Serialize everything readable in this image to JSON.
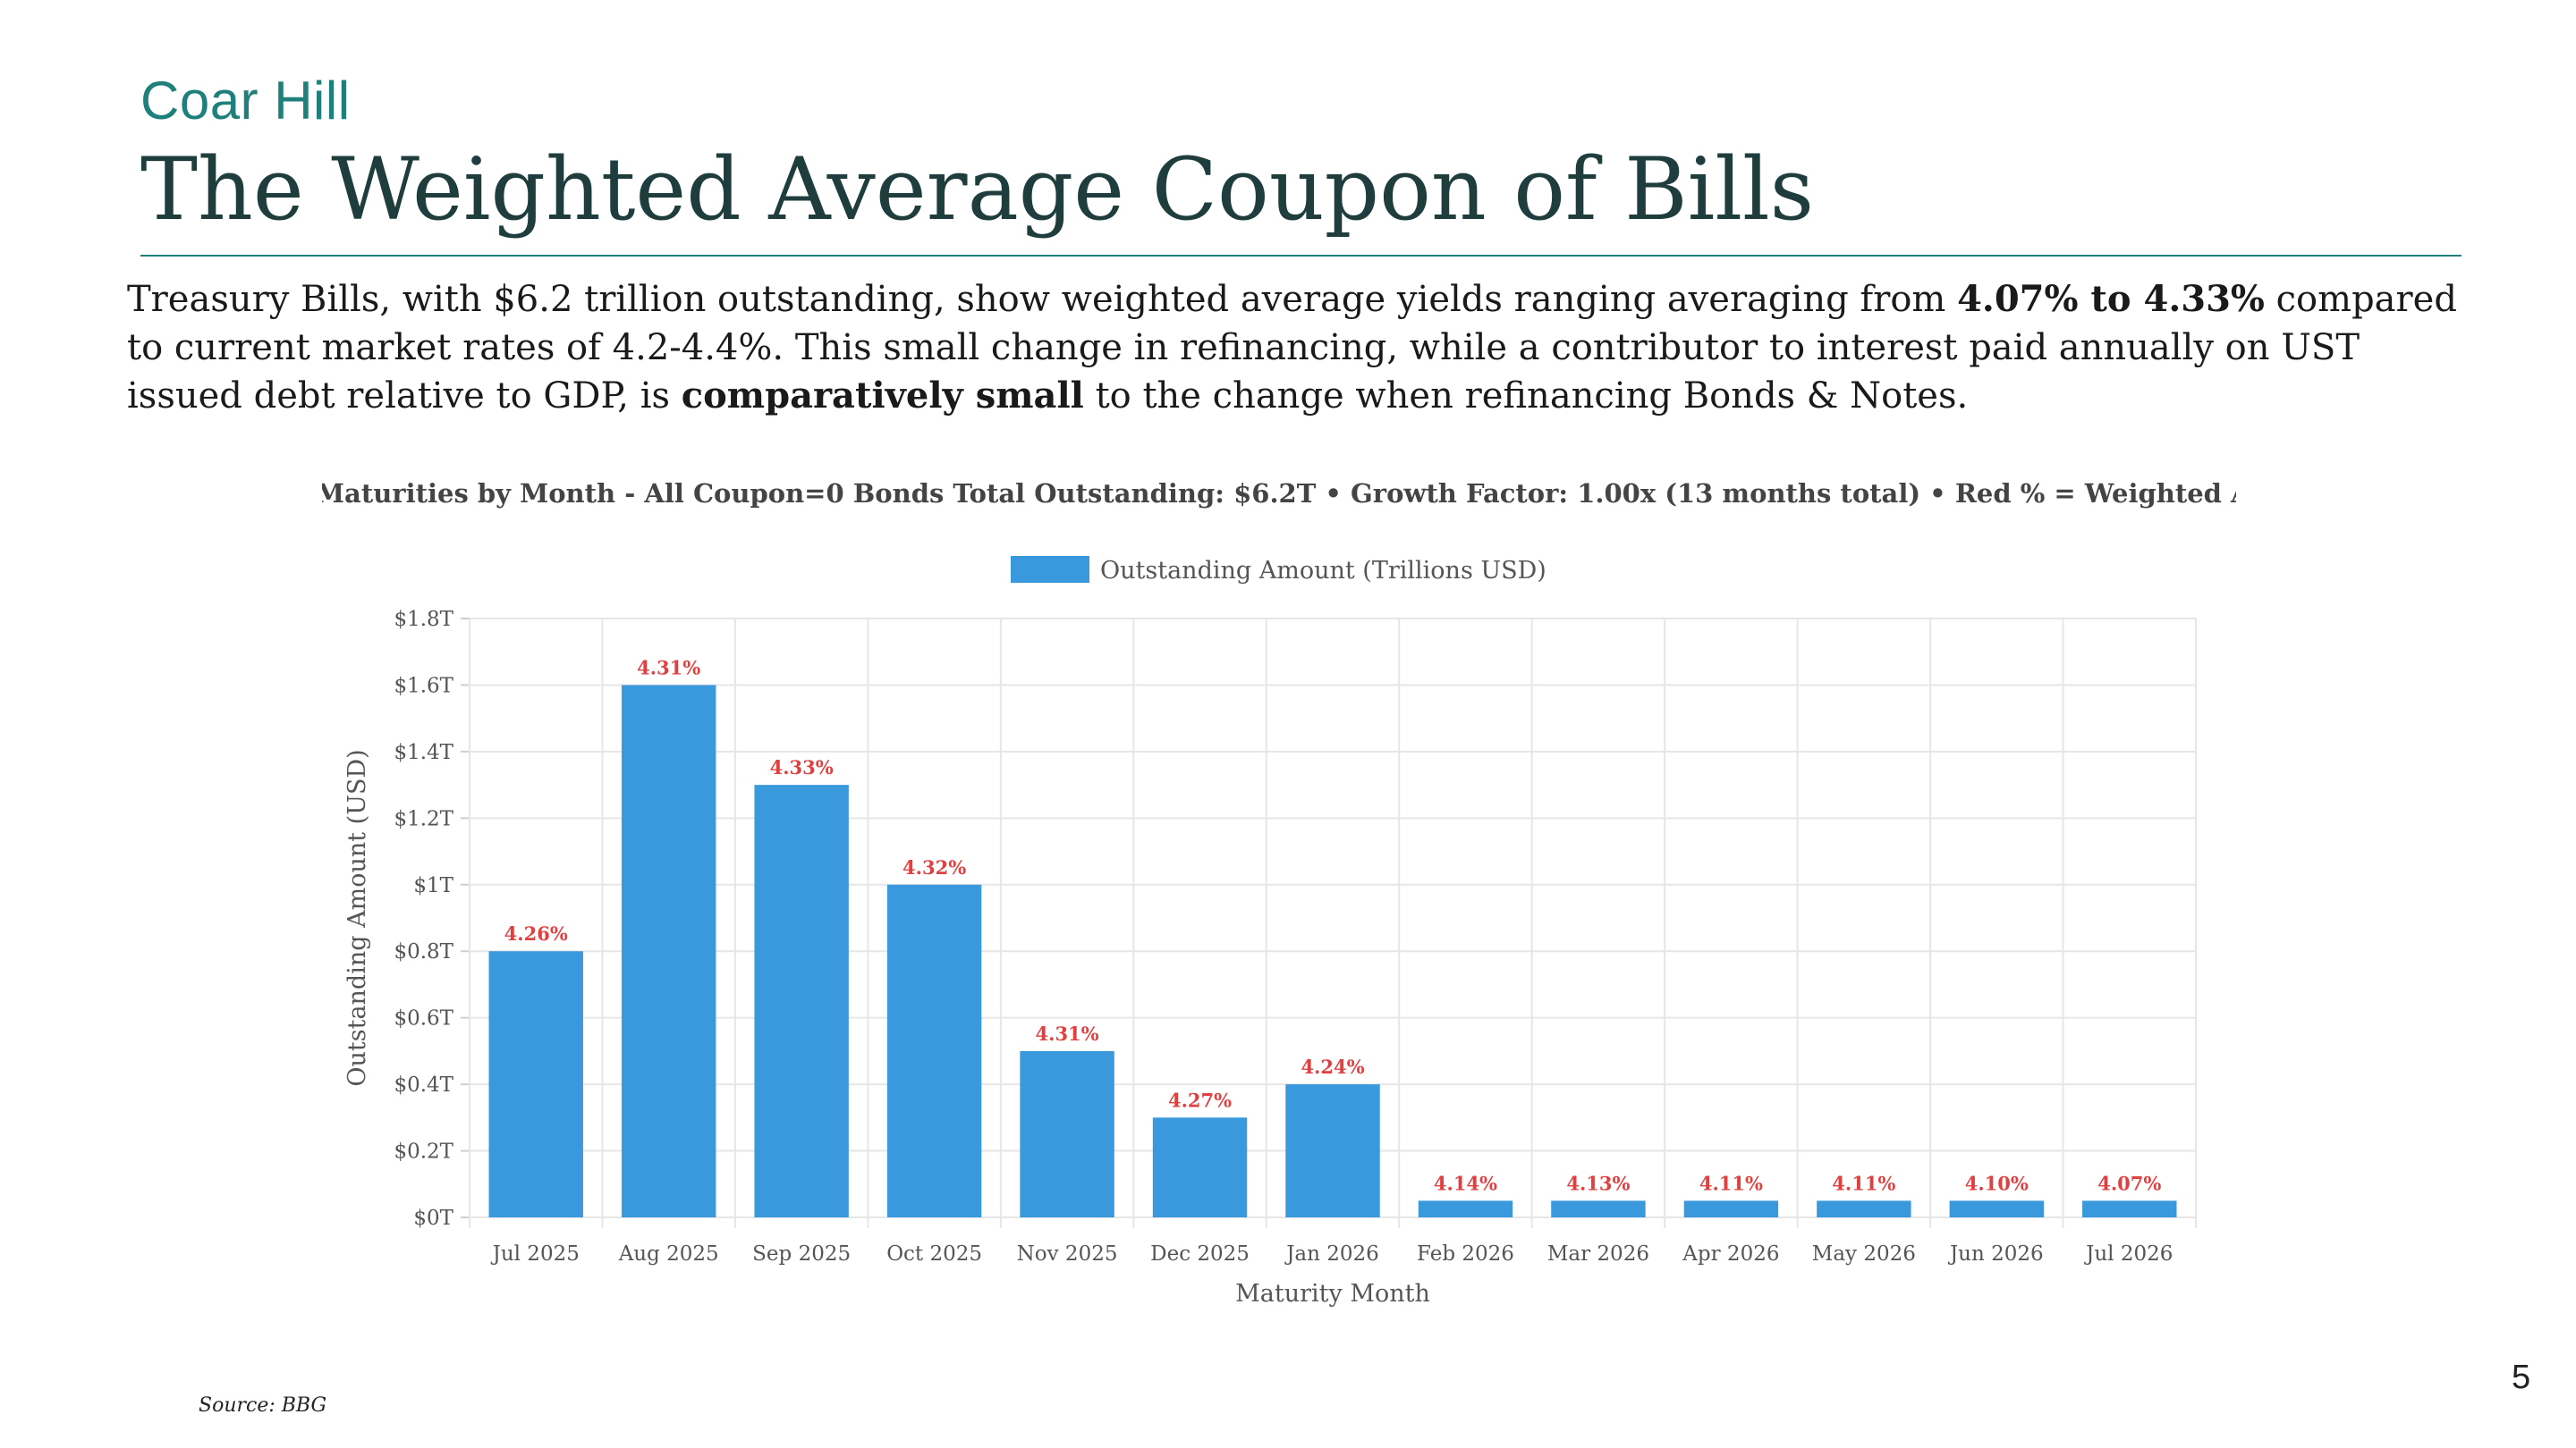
{
  "header": {
    "brand": "Coar Hill",
    "title": "The Weighted Average Coupon of Bills"
  },
  "body": {
    "p1": "Treasury Bills, with $6.2 trillion outstanding, show weighted average yields ranging averaging from ",
    "b1": "4.07% to 4.33%",
    "p2": " compared to current market rates of 4.2-4.4%. This small change in refinancing, while a contributor to interest paid annually on UST issued debt relative to GDP, is ",
    "b2": "comparatively small",
    "p3": " to the change when refinancing Bonds & Notes."
  },
  "footer": {
    "source": "Source: BBG",
    "page_number": "5"
  },
  "colors": {
    "bar": "#3a98dc",
    "yield_label": "#e04040",
    "grid": "#e6e6e6",
    "axis_text": "#555555"
  },
  "chart_data": {
    "type": "bar",
    "title": "T-Bill Maturities by Month - All Coupon=0 Bonds Total Outstanding: $6.2T • Growth Factor: 1.00x (13 months total) • Red % = Weighted Avg Yield",
    "legend": "Outstanding Amount (Trillions USD)",
    "legend_position": "top-center",
    "xlabel": "Maturity Month",
    "ylabel": "Outstanding Amount (USD)",
    "ylim": [
      0,
      1.8
    ],
    "grid": true,
    "y_ticks": [
      0,
      0.2,
      0.4,
      0.6,
      0.8,
      1,
      1.2,
      1.4,
      1.6,
      1.8
    ],
    "y_tick_labels": [
      "$0T",
      "$0.2T",
      "$0.4T",
      "$0.6T",
      "$0.8T",
      "$1T",
      "$1.2T",
      "$1.4T",
      "$1.6T",
      "$1.8T"
    ],
    "categories": [
      "Jul 2025",
      "Aug 2025",
      "Sep 2025",
      "Oct 2025",
      "Nov 2025",
      "Dec 2025",
      "Jan 2026",
      "Feb 2026",
      "Mar 2026",
      "Apr 2026",
      "May 2026",
      "Jun 2026",
      "Jul 2026"
    ],
    "values": [
      0.8,
      1.6,
      1.3,
      1.0,
      0.5,
      0.3,
      0.4,
      0.05,
      0.05,
      0.05,
      0.05,
      0.05,
      0.05
    ],
    "yield_labels": [
      "4.26%",
      "4.31%",
      "4.33%",
      "4.32%",
      "4.31%",
      "4.27%",
      "4.24%",
      "4.14%",
      "4.13%",
      "4.11%",
      "4.11%",
      "4.10%",
      "4.07%"
    ]
  }
}
